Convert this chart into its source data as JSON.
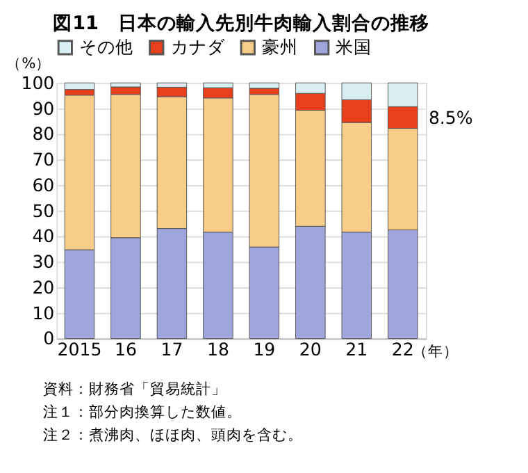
{
  "chart_data": {
    "type": "bar",
    "stacked": true,
    "title": "図11　日本の輸入先別牛肉輸入割合の推移",
    "ylabel": "（%）",
    "xlabel": "（年）",
    "categories": [
      "2015",
      "16",
      "17",
      "18",
      "19",
      "20",
      "21",
      "22"
    ],
    "series": [
      {
        "name": "米国",
        "color": "#9fa6dd",
        "values": [
          34.7,
          39.4,
          43.0,
          41.6,
          35.8,
          43.9,
          41.6,
          42.5
        ]
      },
      {
        "name": "豪州",
        "color": "#f8cd88",
        "values": [
          60.5,
          56.1,
          51.6,
          52.5,
          59.7,
          45.4,
          42.9,
          39.7
        ]
      },
      {
        "name": "カナダ",
        "color": "#e8401c",
        "values": [
          2.2,
          2.9,
          3.7,
          4.0,
          2.4,
          6.6,
          8.9,
          8.5
        ]
      },
      {
        "name": "その他",
        "color": "#d8eef0",
        "values": [
          2.6,
          1.6,
          1.7,
          1.9,
          2.1,
          4.1,
          6.6,
          9.3
        ]
      }
    ],
    "ylim": [
      0,
      100
    ],
    "yticks": [
      0,
      10,
      20,
      30,
      40,
      50,
      60,
      70,
      80,
      90,
      100
    ],
    "grid": "y",
    "legend": "top",
    "annotations": [
      "8.5%",
      "資料：財務省「貿易統計」",
      "注１：部分肉換算した数値。",
      "注２：煮沸肉、ほほ肉、頭肉を含む。"
    ]
  }
}
